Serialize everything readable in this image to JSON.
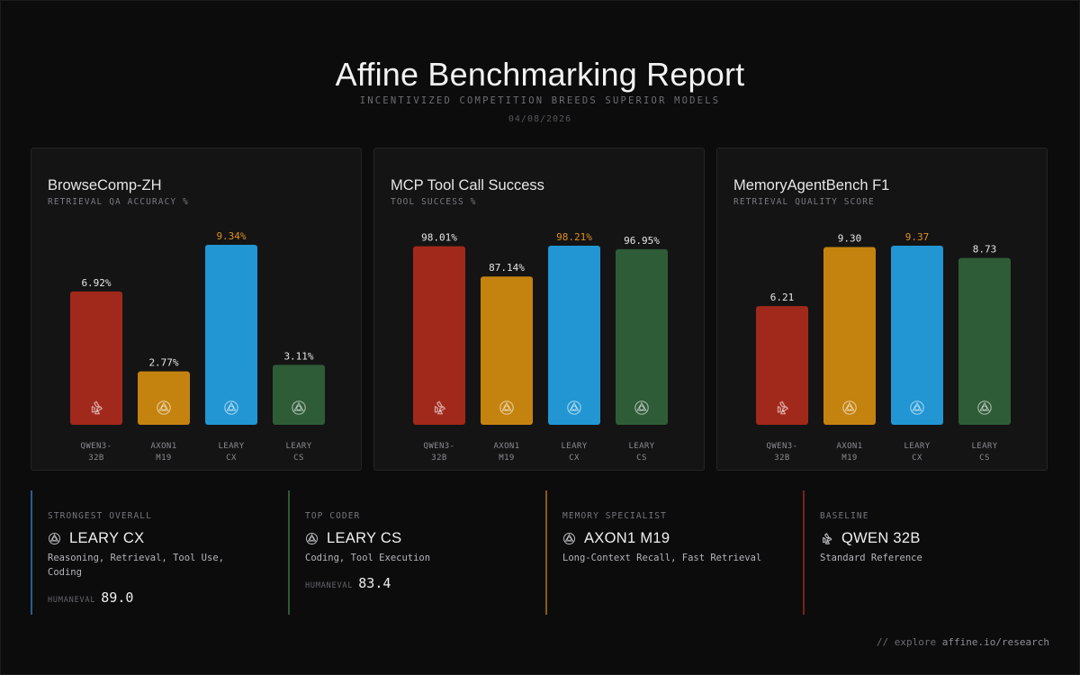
{
  "header": {
    "title": "Affine Benchmarking Report",
    "subtitle": "INCENTIVIZED COMPETITION BREEDS SUPERIOR MODELS",
    "date": "04/08/2026"
  },
  "colors": {
    "qwen": "#a1291b",
    "axon": "#c4830f",
    "leary_cx": "#2196d3",
    "leary_cs": "#2e5c37",
    "highlight": "#e0911c",
    "label": "#e6e6e6"
  },
  "chart_data": [
    {
      "type": "bar",
      "title": "BrowseComp-ZH",
      "subtitle": "RETRIEVAL QA ACCURACY %",
      "categories": [
        "QWEN3-\n32B",
        "AXON1\nM19",
        "LEARY\nCX",
        "LEARY\nCS"
      ],
      "values": [
        6.92,
        2.77,
        9.34,
        3.11
      ],
      "value_labels": [
        "6.92%",
        "2.77%",
        "9.34%",
        "3.11%"
      ],
      "highlight_index": 2,
      "ylim": [
        0,
        10
      ],
      "icons": [
        "qwen-logo-icon",
        "affine-logo-icon",
        "affine-logo-icon",
        "affine-logo-icon"
      ]
    },
    {
      "type": "bar",
      "title": "MCP Tool Call Success",
      "subtitle": "TOOL SUCCESS %",
      "categories": [
        "QWEN3-\n32B",
        "AXON1\nM19",
        "LEARY\nCX",
        "LEARY\nCS"
      ],
      "values": [
        98.01,
        87.14,
        98.21,
        96.95
      ],
      "value_labels": [
        "98.01%",
        "87.14%",
        "98.21%",
        "96.95%"
      ],
      "highlight_index": 2,
      "ylim": [
        0,
        100
      ],
      "icons": [
        "qwen-logo-icon",
        "affine-logo-icon",
        "affine-logo-icon",
        "affine-logo-icon"
      ]
    },
    {
      "type": "bar",
      "title": "MemoryAgentBench F1",
      "subtitle": "RETRIEVAL QUALITY SCORE",
      "categories": [
        "QWEN3-\n32B",
        "AXON1\nM19",
        "LEARY\nCX",
        "LEARY\nCS"
      ],
      "values": [
        6.21,
        9.3,
        9.37,
        8.73
      ],
      "value_labels": [
        "6.21",
        "9.30",
        "9.37",
        "8.73"
      ],
      "highlight_index": 2,
      "ylim": [
        0,
        10
      ],
      "icons": [
        "qwen-logo-icon",
        "affine-logo-icon",
        "affine-logo-icon",
        "affine-logo-icon"
      ]
    }
  ],
  "cards": [
    {
      "label": "STRONGEST OVERALL",
      "name": "LEARY CX",
      "icon": "affine-logo-icon",
      "desc": "Reasoning, Retrieval, Tool Use, Coding",
      "metric_name": "HUMANEVAL",
      "metric_value": "89.0",
      "accent": "#2a5e8f"
    },
    {
      "label": "TOP CODER",
      "name": "LEARY CS",
      "icon": "affine-logo-icon",
      "desc": "Coding, Tool Execution",
      "metric_name": "HUMANEVAL",
      "metric_value": "83.4",
      "accent": "#2f5a33"
    },
    {
      "label": "MEMORY SPECIALIST",
      "name": "AXON1 M19",
      "icon": "affine-logo-icon",
      "desc": "Long-Context Recall, Fast Retrieval",
      "metric_name": "",
      "metric_value": "",
      "accent": "#8a5a12"
    },
    {
      "label": "BASELINE",
      "name": "QWEN 32B",
      "icon": "qwen-logo-icon",
      "desc": "Standard Reference",
      "metric_name": "",
      "metric_value": "",
      "accent": "#7a2119"
    }
  ],
  "footer": {
    "prefix": "// explore",
    "link": "affine.io/research"
  }
}
